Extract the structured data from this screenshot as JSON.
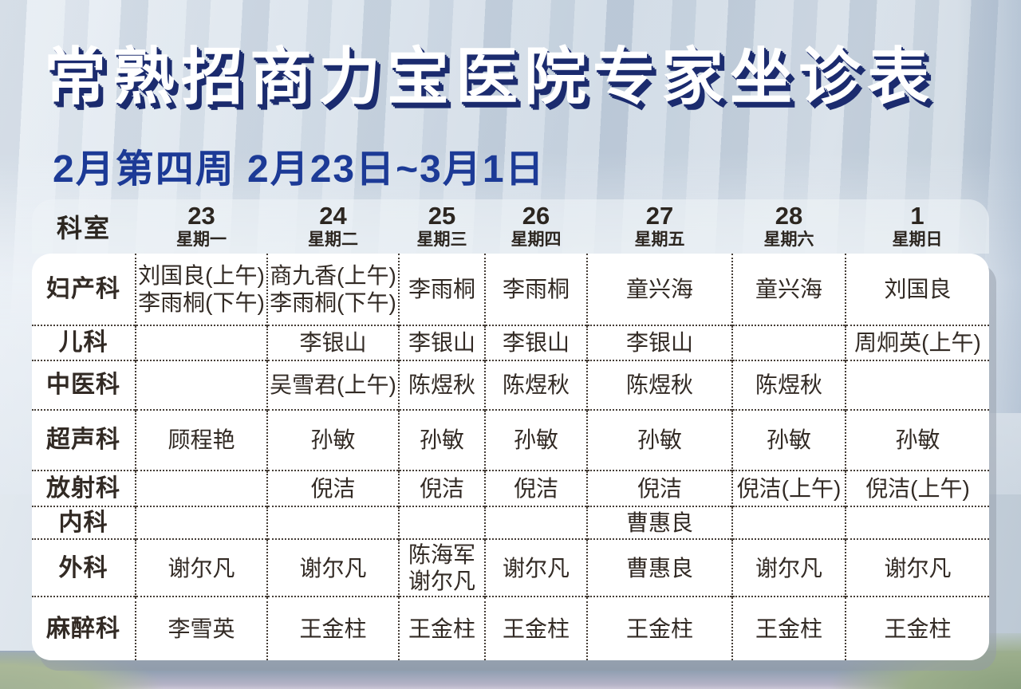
{
  "title": "常熟招商力宝医院专家坐诊表",
  "subtitle": "2月第四周 2月23日~3月1日",
  "colors": {
    "title_fill": "#ffffff",
    "title_shadow": "#1b2b6e",
    "subtitle_text": "#1c3a96",
    "table_text": "#322a24",
    "card_background": "#ffffff"
  },
  "table": {
    "dept_header": "科室",
    "days": [
      {
        "date": "23",
        "weekday": "星期一"
      },
      {
        "date": "24",
        "weekday": "星期二"
      },
      {
        "date": "25",
        "weekday": "星期三"
      },
      {
        "date": "26",
        "weekday": "星期四"
      },
      {
        "date": "27",
        "weekday": "星期五"
      },
      {
        "date": "28",
        "weekday": "星期六"
      },
      {
        "date": "1",
        "weekday": "星期日"
      }
    ],
    "rows": [
      {
        "dept": "妇产科",
        "cells": [
          [
            "刘国良(上午)",
            "李雨桐(下午)"
          ],
          [
            "商九香(上午)",
            "李雨桐(下午)"
          ],
          [
            "李雨桐"
          ],
          [
            "李雨桐"
          ],
          [
            "童兴海"
          ],
          [
            "童兴海"
          ],
          [
            "刘国良"
          ]
        ]
      },
      {
        "dept": "儿科",
        "cells": [
          [],
          [
            "李银山"
          ],
          [
            "李银山"
          ],
          [
            "李银山"
          ],
          [
            "李银山"
          ],
          [],
          [
            "周炯英(上午)"
          ]
        ]
      },
      {
        "dept": "中医科",
        "cells": [
          [],
          [
            "吴雪君(上午)"
          ],
          [
            "陈煜秋"
          ],
          [
            "陈煜秋"
          ],
          [
            "陈煜秋"
          ],
          [
            "陈煜秋"
          ],
          []
        ]
      },
      {
        "dept": "超声科",
        "cells": [
          [
            "顾程艳"
          ],
          [
            "孙敏"
          ],
          [
            "孙敏"
          ],
          [
            "孙敏"
          ],
          [
            "孙敏"
          ],
          [
            "孙敏"
          ],
          [
            "孙敏"
          ]
        ]
      },
      {
        "dept": "放射科",
        "cells": [
          [],
          [
            "倪洁"
          ],
          [
            "倪洁"
          ],
          [
            "倪洁"
          ],
          [
            "倪洁"
          ],
          [
            "倪洁(上午)"
          ],
          [
            "倪洁(上午)"
          ]
        ]
      },
      {
        "dept": "内科",
        "cells": [
          [],
          [],
          [],
          [],
          [
            "曹惠良"
          ],
          [],
          []
        ]
      },
      {
        "dept": "外科",
        "cells": [
          [
            "谢尔凡"
          ],
          [
            "谢尔凡"
          ],
          [
            "陈海军",
            "谢尔凡"
          ],
          [
            "谢尔凡"
          ],
          [
            "曹惠良"
          ],
          [
            "谢尔凡"
          ],
          [
            "谢尔凡"
          ]
        ]
      },
      {
        "dept": "麻醉科",
        "cells": [
          [
            "李雪英"
          ],
          [
            "王金柱"
          ],
          [
            "王金柱"
          ],
          [
            "王金柱"
          ],
          [
            "王金柱"
          ],
          [
            "王金柱"
          ],
          [
            "王金柱"
          ]
        ]
      }
    ]
  }
}
